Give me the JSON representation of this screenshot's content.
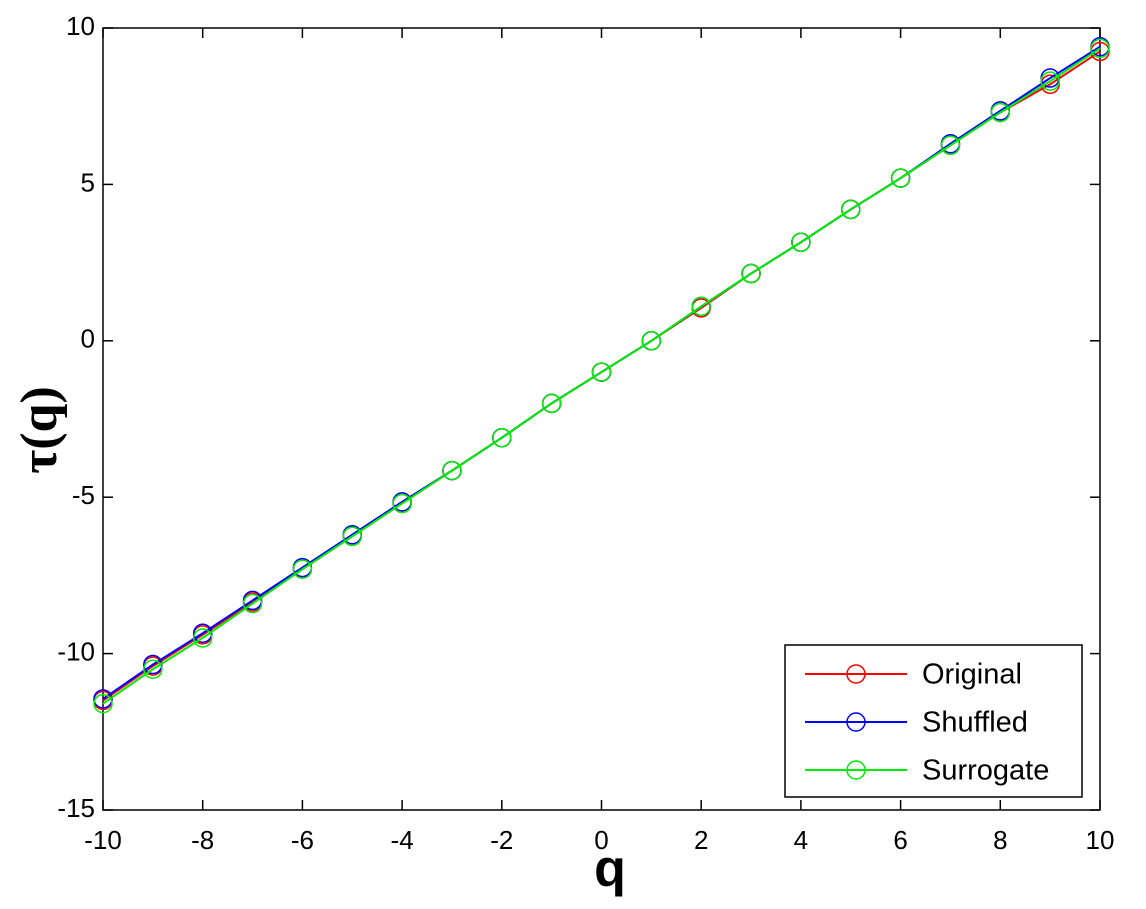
{
  "chart_data": {
    "type": "line",
    "xlabel": "q",
    "ylabel": "τ(q)",
    "x": [
      -10,
      -9,
      -8,
      -7,
      -6,
      -5,
      -4,
      -3,
      -2,
      -1,
      0,
      1,
      2,
      3,
      4,
      5,
      6,
      7,
      8,
      9,
      10
    ],
    "series": [
      {
        "name": "Original",
        "color": "#ff0000",
        "values": [
          -11.5,
          -10.4,
          -9.4,
          -8.35,
          -7.3,
          -6.25,
          -5.2,
          -4.15,
          -3.1,
          -2.0,
          -1.0,
          0.0,
          1.05,
          2.15,
          3.15,
          4.2,
          5.2,
          6.25,
          7.3,
          8.2,
          9.25
        ]
      },
      {
        "name": "Shuffled",
        "color": "#0000ff",
        "values": [
          -11.45,
          -10.35,
          -9.35,
          -8.3,
          -7.25,
          -6.2,
          -5.15,
          -4.15,
          -3.1,
          -2.0,
          -1.0,
          0.0,
          1.1,
          2.15,
          3.15,
          4.2,
          5.2,
          6.3,
          7.35,
          8.4,
          9.4
        ]
      },
      {
        "name": "Surrogate",
        "color": "#00ee00",
        "values": [
          -11.6,
          -10.5,
          -9.5,
          -8.4,
          -7.3,
          -6.25,
          -5.2,
          -4.15,
          -3.1,
          -2.0,
          -1.0,
          0.0,
          1.1,
          2.15,
          3.15,
          4.2,
          5.2,
          6.25,
          7.3,
          8.3,
          9.35
        ]
      }
    ],
    "xlim": [
      -10,
      10
    ],
    "xticks": [
      -10,
      -8,
      -6,
      -4,
      -2,
      0,
      2,
      4,
      6,
      8,
      10
    ],
    "ylim": [
      -15,
      10
    ],
    "yticks": [
      -15,
      -10,
      -5,
      0,
      5,
      10
    ],
    "legend": "lower right",
    "marker": "circle"
  }
}
